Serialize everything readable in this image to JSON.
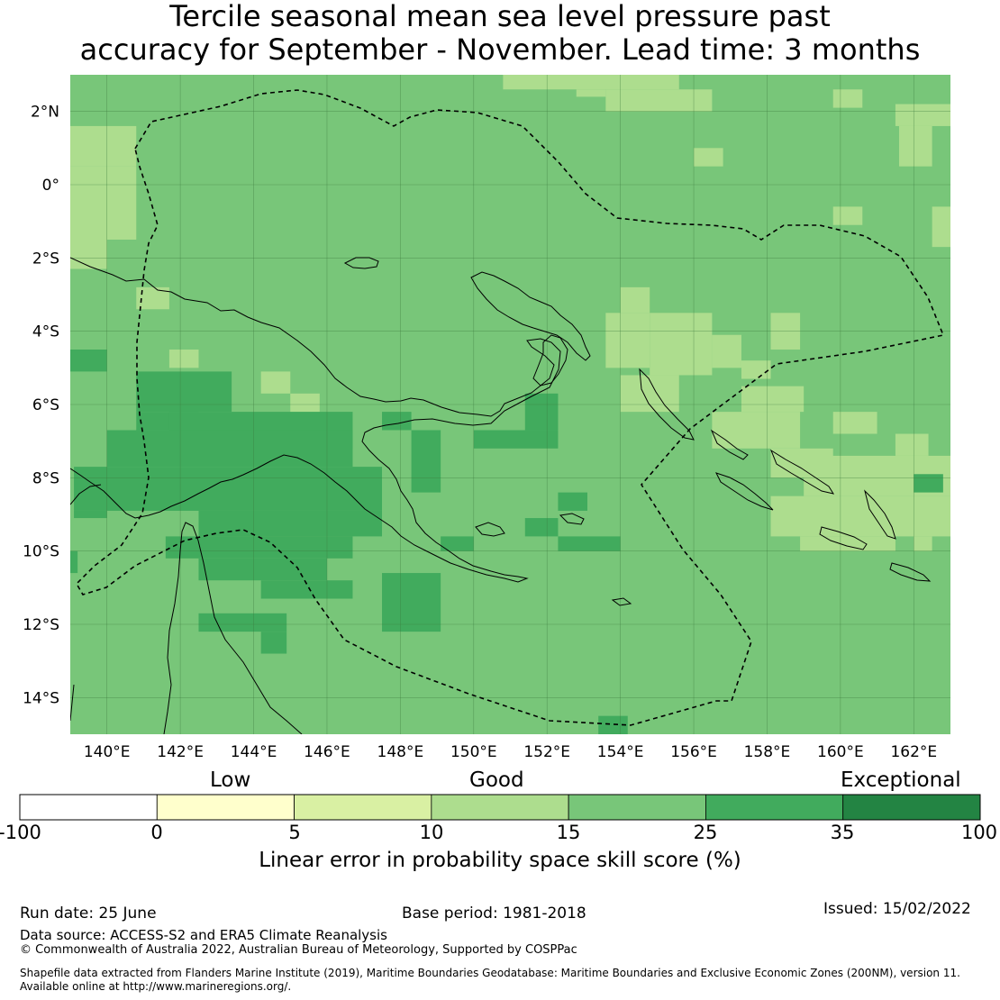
{
  "title": {
    "line1": "Tercile seasonal mean sea level pressure past",
    "line2": "accuracy for September - November. Lead time: 3 months"
  },
  "map": {
    "lon_range": [
      139,
      163
    ],
    "lat_range": [
      -15,
      3
    ],
    "lon_ticks": [
      "140°E",
      "142°E",
      "144°E",
      "146°E",
      "148°E",
      "150°E",
      "152°E",
      "154°E",
      "156°E",
      "158°E",
      "160°E",
      "162°E"
    ],
    "lat_ticks": [
      "2°N",
      "0°",
      "2°S",
      "4°S",
      "6°S",
      "8°S",
      "10°S",
      "12°S",
      "14°S"
    ],
    "grid": true,
    "background_color": "#78c679",
    "colors": {
      "c0": "#ffffff",
      "c1": "#ffffcc",
      "c2": "#d9f0a3",
      "c3": "#addd8e",
      "c4": "#78c679",
      "c5": "#41ab5d",
      "c6": "#238443"
    }
  },
  "colorbar": {
    "categories": [
      "Low",
      "Good",
      "Exceptional"
    ],
    "ticks": [
      "-100",
      "0",
      "5",
      "10",
      "15",
      "25",
      "35",
      "100"
    ],
    "colors": [
      "#ffffff",
      "#ffffcc",
      "#d9f0a3",
      "#addd8e",
      "#78c679",
      "#41ab5d",
      "#238443"
    ],
    "label": "Linear error in probability space skill score (%)"
  },
  "footer": {
    "run_date": "Run date: 25 June",
    "base_period": "Base period: 1981-2018",
    "issued": "Issued: 15/02/2022",
    "data_source": "Data source: ACCESS-S2 and ERA5 Climate Reanalysis",
    "copyright": "© Commonwealth of Australia 2022, Australian Bureau of Meteorology, Supported by COSPPac",
    "shapefile_line1": "Shapefile data extracted from Flanders Marine Institute (2019), Maritime Boundaries Geodatabase: Maritime Boundaries and Exclusive Economic Zones (200NM), version 11.",
    "shapefile_line2": "Available online at http://www.marineregions.org/."
  }
}
